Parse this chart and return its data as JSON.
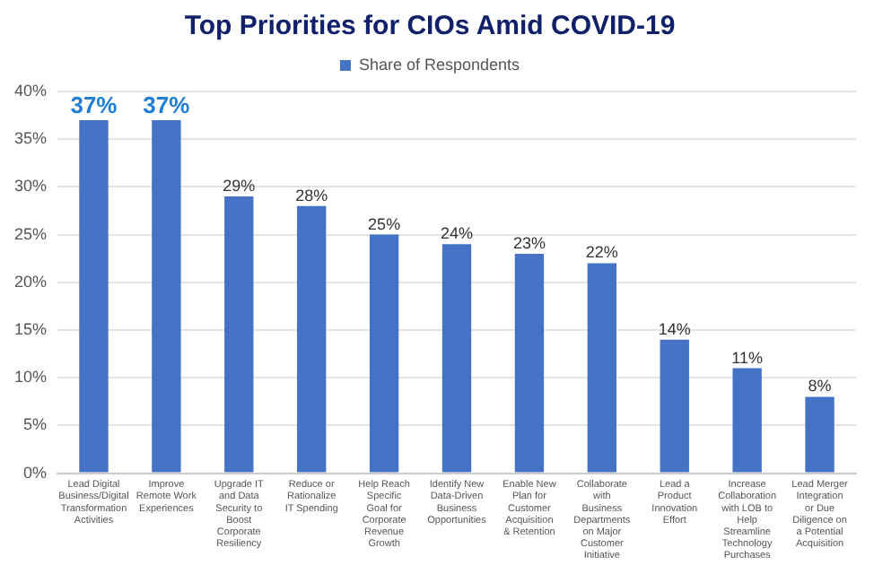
{
  "chart_data": {
    "type": "bar",
    "title": "Top Priorities for CIOs Amid COVID-19",
    "categories": [
      "Lead Digital Business/Digital Transformation Activities",
      "Improve Remote Work Experiences",
      "Upgrade IT and Data Security to Boost Corporate Resiliency",
      "Reduce or Rationalize IT Spending",
      "Help Reach Specific Goal for Corporate Revenue Growth",
      "Identify New Data-Driven Business Opportunities",
      "Enable New Plan for Customer Acquisition & Retention",
      "Collaborate with Business Departments on Major Customer Initiative",
      "Lead a Product Innovation Effort",
      "Increase Collaboration with LOB to Help Streamline Technology Purchases",
      "Lead Merger Integration or Due Diligence on a Potential Acquisition"
    ],
    "series": [
      {
        "name": "Share of Respondents",
        "color": "#4472c4",
        "values": [
          37,
          37,
          29,
          28,
          25,
          24,
          23,
          22,
          14,
          11,
          8
        ],
        "value_labels": [
          "37%",
          "37%",
          "29%",
          "28%",
          "25%",
          "24%",
          "23%",
          "22%",
          "14%",
          "11%",
          "8%"
        ]
      }
    ],
    "ylim": [
      0,
      40
    ],
    "yticks": [
      {
        "value": 0,
        "label": "0%"
      },
      {
        "value": 5,
        "label": "5%"
      },
      {
        "value": 10,
        "label": "10%"
      },
      {
        "value": 15,
        "label": "15%"
      },
      {
        "value": 20,
        "label": "20%"
      },
      {
        "value": 25,
        "label": "25%"
      },
      {
        "value": 30,
        "label": "30%"
      },
      {
        "value": 35,
        "label": "35%"
      },
      {
        "value": 40,
        "label": "40%"
      }
    ],
    "grid": "y",
    "legend": "top"
  }
}
